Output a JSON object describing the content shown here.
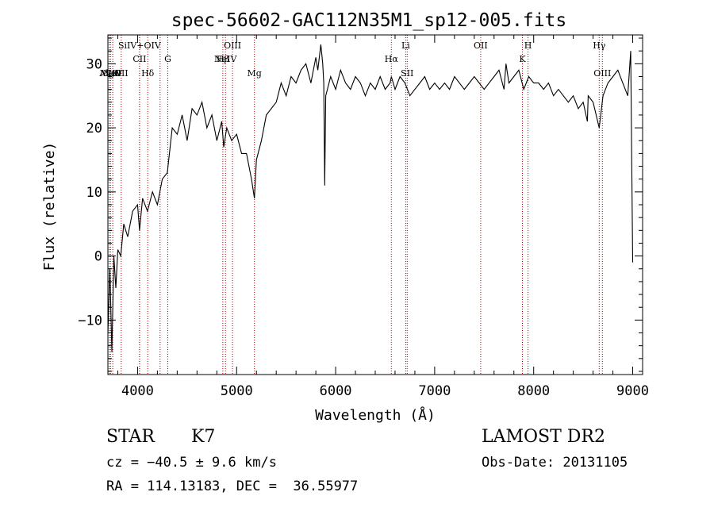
{
  "chart_data": {
    "type": "line",
    "title": "spec-56602-GAC112N35M1_sp12-005.fits",
    "xlabel": "Wavelength (Å)",
    "ylabel": "Flux (relative)",
    "xlim": [
      3700,
      9100
    ],
    "ylim": [
      -18.5,
      34.5
    ],
    "x_ticks": [
      4000,
      5000,
      6000,
      7000,
      8000,
      9000
    ],
    "y_ticks": [
      -10,
      0,
      10,
      20,
      30
    ],
    "grid": false,
    "series": [
      {
        "x": [
          3700,
          3720,
          3740,
          3760,
          3780,
          3800,
          3830,
          3860,
          3900,
          3950,
          4000,
          4020,
          4050,
          4100,
          4150,
          4200,
          4250,
          4300,
          4350,
          4400,
          4450,
          4500,
          4550,
          4600,
          4650,
          4700,
          4750,
          4800,
          4850,
          4870,
          4900,
          4950,
          5000,
          5050,
          5100,
          5150,
          5180,
          5200,
          5250,
          5300,
          5350,
          5400,
          5450,
          5500,
          5550,
          5600,
          5650,
          5700,
          5750,
          5800,
          5820,
          5850,
          5870,
          5880,
          5890,
          5900,
          5950,
          6000,
          6050,
          6100,
          6150,
          6200,
          6250,
          6300,
          6350,
          6400,
          6450,
          6500,
          6550,
          6563,
          6600,
          6650,
          6700,
          6750,
          6800,
          6850,
          6900,
          6950,
          7000,
          7050,
          7100,
          7150,
          7200,
          7250,
          7300,
          7350,
          7400,
          7450,
          7500,
          7550,
          7600,
          7650,
          7700,
          7720,
          7750,
          7800,
          7850,
          7900,
          7950,
          8000,
          8050,
          8100,
          8150,
          8200,
          8250,
          8300,
          8350,
          8400,
          8450,
          8500,
          8542,
          8550,
          8600,
          8662,
          8700,
          8750,
          8800,
          8850,
          8900,
          8950,
          8980,
          9000
        ],
        "y": [
          -12,
          -2,
          -15,
          0,
          -5,
          1,
          0,
          5,
          3,
          7,
          8,
          4,
          9,
          7,
          10,
          8,
          12,
          13,
          20,
          19,
          22,
          18,
          23,
          22,
          24,
          20,
          22,
          18,
          21,
          17,
          20,
          18,
          19,
          16,
          16,
          12,
          9,
          15,
          18,
          22,
          23,
          24,
          27,
          25,
          28,
          27,
          29,
          30,
          27,
          31,
          29,
          33,
          30,
          27,
          11,
          25,
          28,
          26,
          29,
          27,
          26,
          28,
          27,
          25,
          27,
          26,
          28,
          26,
          27,
          28,
          26,
          28,
          27,
          25,
          26,
          27,
          28,
          26,
          27,
          26,
          27,
          26,
          28,
          27,
          26,
          27,
          28,
          27,
          26,
          27,
          28,
          29,
          26,
          30,
          27,
          28,
          29,
          26,
          28,
          27,
          27,
          26,
          27,
          25,
          26,
          25,
          24,
          25,
          23,
          24,
          21,
          25,
          24,
          20,
          25,
          27,
          28,
          29,
          27,
          25,
          32,
          -1
        ]
      }
    ],
    "lines": [
      {
        "label": "AlIII",
        "x": 3713,
        "row": 3
      },
      {
        "label": "MgII",
        "x": 3727,
        "row": 3
      },
      {
        "label": "NeV",
        "x": 3749,
        "row": 3
      },
      {
        "label": "OII",
        "x": 3835,
        "row": 3
      },
      {
        "label": "SiIV+OIV",
        "x": 4020,
        "row": 1
      },
      {
        "label": "CII",
        "x": 4020,
        "row": 2
      },
      {
        "label": "Hδ",
        "x": 4102,
        "row": 3
      },
      {
        "label": "G",
        "x": 4305,
        "row": 2
      },
      {
        "label": "",
        "x": 4227
      },
      {
        "label": "OIII",
        "x": 4959,
        "row": 1
      },
      {
        "label": "NeIV",
        "x": 4887,
        "row": 2
      },
      {
        "label": "Hβ",
        "x": 4861,
        "row": 2
      },
      {
        "label": "Mg",
        "x": 5180,
        "row": 3
      },
      {
        "label": "Hα",
        "x": 6563,
        "row": 2
      },
      {
        "label": "Li",
        "x": 6708,
        "row": 1
      },
      {
        "label": "SII",
        "x": 6723,
        "row": 3
      },
      {
        "label": "OII",
        "x": 7465,
        "row": 1
      },
      {
        "label": "K",
        "x": 7886,
        "row": 2
      },
      {
        "label": "H",
        "x": 7943,
        "row": 1
      },
      {
        "label": "Hγ",
        "x": 8662,
        "row": 1
      },
      {
        "label": "OIII",
        "x": 8694,
        "row": 3
      }
    ]
  },
  "info": {
    "class": "STAR",
    "subclass": "K7",
    "survey": "LAMOST DR2",
    "cz": "cz = −40.5 ± 9.6 km/s",
    "obs_date": "Obs-Date: 20131105",
    "coords": "RA = 114.13183, DEC =  36.55977"
  }
}
